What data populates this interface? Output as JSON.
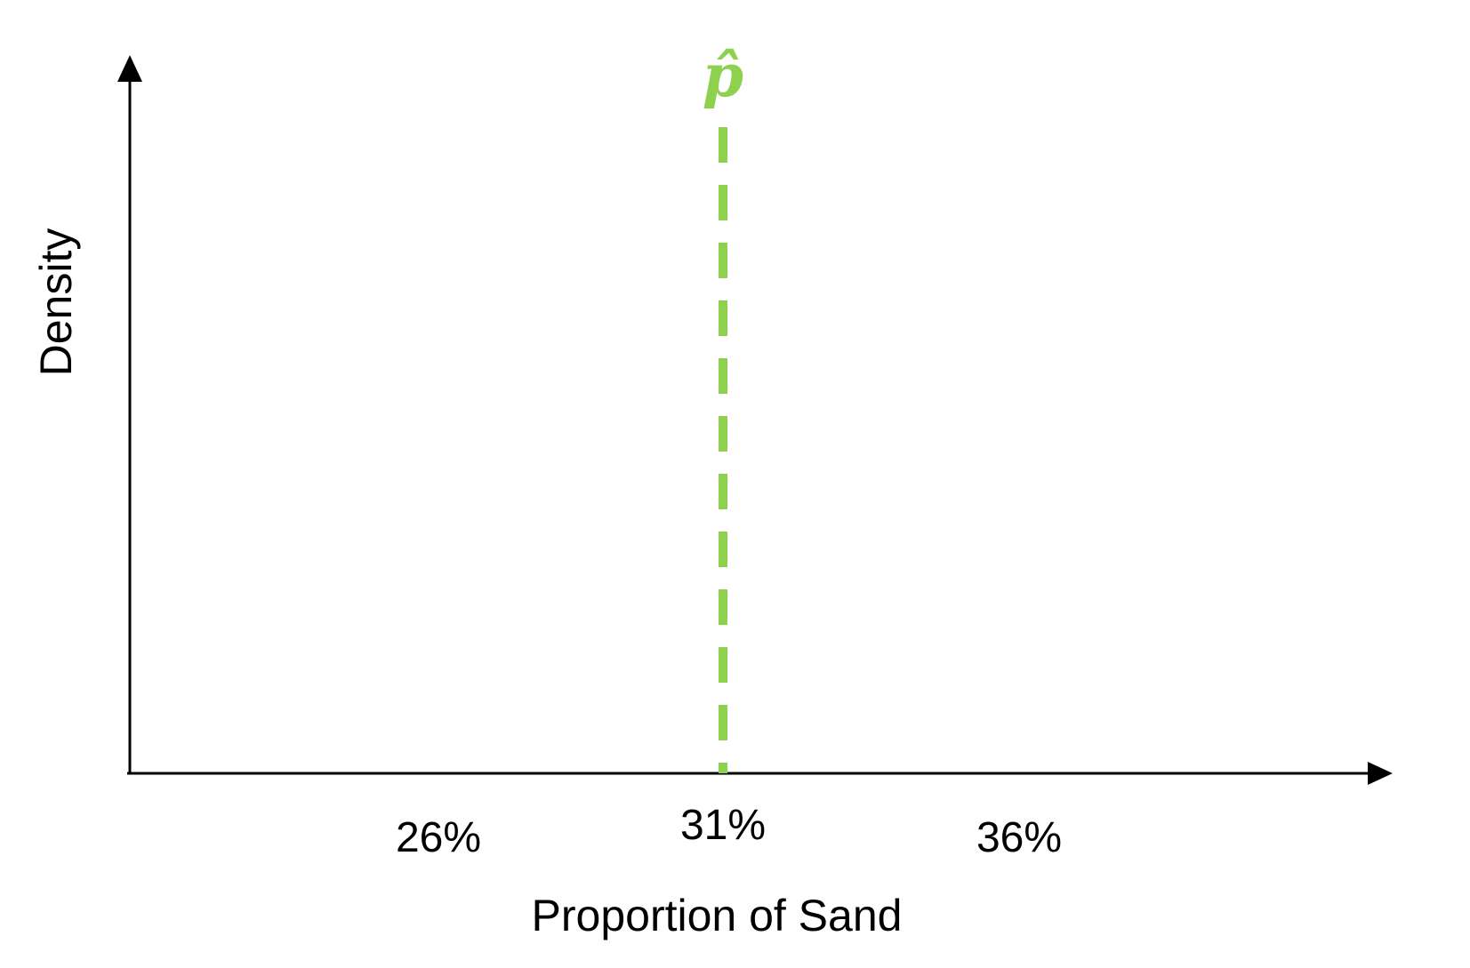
{
  "chart_data": {
    "type": "line",
    "title": "",
    "xlabel": "Proportion of Sand",
    "ylabel": "Density",
    "x_ticks": [
      {
        "value": 26,
        "label": "26%"
      },
      {
        "value": 31,
        "label": "31%"
      },
      {
        "value": 36,
        "label": "36%"
      }
    ],
    "marker": {
      "x": 31,
      "label": "p̂",
      "color": "#8dd14f",
      "style": "dashed"
    },
    "grid": false,
    "series": []
  }
}
